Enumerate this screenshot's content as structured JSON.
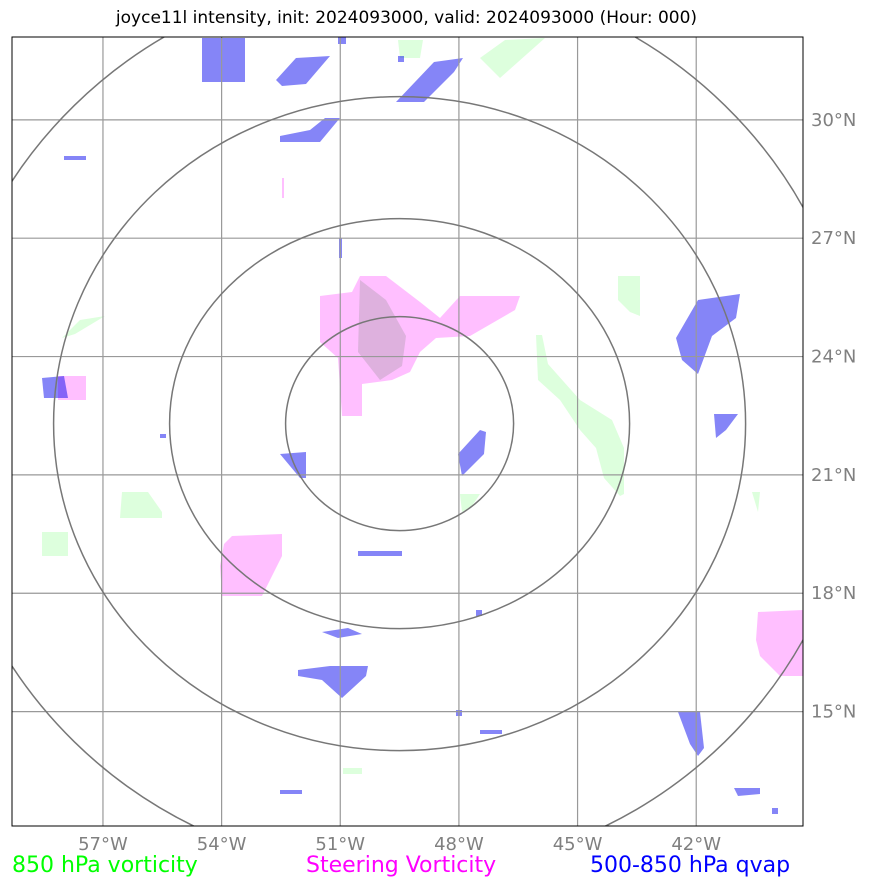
{
  "title": "joyce11l intensity, init: 2024093000, valid: 2024093000 (Hour: 000)",
  "map": {
    "lon_range": [
      -59.3,
      -39.3
    ],
    "lat_range": [
      12.1,
      32.1
    ],
    "lon_ticks": [
      {
        "value": -57,
        "label": "57°W"
      },
      {
        "value": -54,
        "label": "54°W"
      },
      {
        "value": -51,
        "label": "51°W"
      },
      {
        "value": -48,
        "label": "48°W"
      },
      {
        "value": -45,
        "label": "45°W"
      },
      {
        "value": -42,
        "label": "42°W"
      }
    ],
    "lat_ticks": [
      {
        "value": 30,
        "label": "30°N"
      },
      {
        "value": 27,
        "label": "27°N"
      },
      {
        "value": 24,
        "label": "24°N"
      },
      {
        "value": 21,
        "label": "21°N"
      },
      {
        "value": 18,
        "label": "18°N"
      },
      {
        "value": 15,
        "label": "15°N"
      }
    ],
    "rings_center": {
      "lon": -49.5,
      "lat": 22.3
    },
    "colors": {
      "steering_vorticity": "#ff66ff",
      "vorticity_850": "#66ff66",
      "qvap_500_850": "#0000ee",
      "grid": "#999999",
      "rings": "#777777"
    }
  },
  "legend": {
    "green": "850 hPa vorticity",
    "magenta": "Steering Vorticity",
    "blue": "500-850 hPa qvap"
  }
}
